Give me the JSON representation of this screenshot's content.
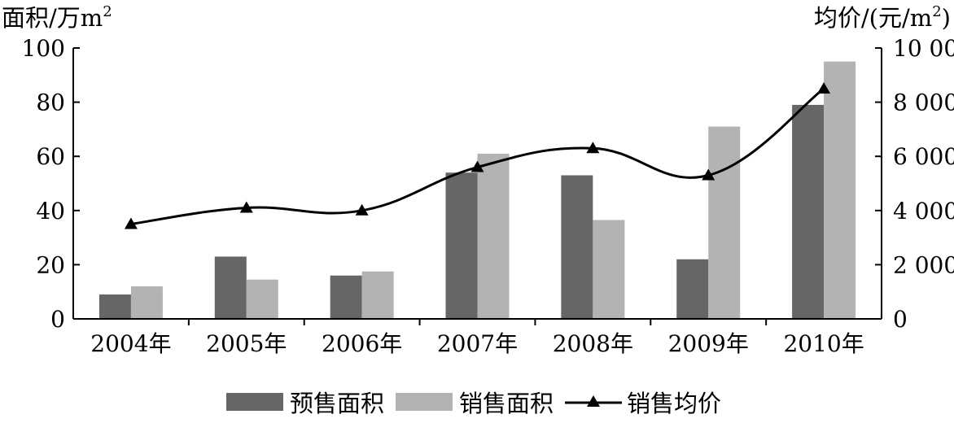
{
  "chart_data": {
    "type": "bar",
    "categories": [
      "2004年",
      "2005年",
      "2006年",
      "2007年",
      "2008年",
      "2009年",
      "2010年"
    ],
    "series": [
      {
        "name": "预售面积",
        "kind": "bar",
        "axis": "left",
        "color": "#666666",
        "values": [
          9,
          23,
          16,
          54,
          53,
          22,
          79
        ]
      },
      {
        "name": "销售面积",
        "kind": "bar",
        "axis": "left",
        "color": "#b3b3b3",
        "values": [
          12,
          14.5,
          17.5,
          61,
          36.5,
          71,
          95
        ]
      },
      {
        "name": "销售均价",
        "kind": "line",
        "axis": "right",
        "marker": "triangle",
        "color": "#000000",
        "values": [
          3500,
          4100,
          4000,
          5600,
          6300,
          5300,
          8500
        ]
      }
    ],
    "y_left": {
      "label": "面积/万m",
      "label_sup": "2",
      "range": [
        0,
        100
      ],
      "ticks": [
        "0",
        "20",
        "40",
        "60",
        "80",
        "100"
      ]
    },
    "y_right": {
      "label": "均价/(元/m",
      "label_sup": "2",
      "label_tail": ")",
      "range": [
        0,
        10000
      ],
      "ticks": [
        "0",
        "2 000",
        "4 000",
        "6 000",
        "8 000",
        "10 000"
      ]
    },
    "grid": false,
    "legend_position": "bottom"
  }
}
